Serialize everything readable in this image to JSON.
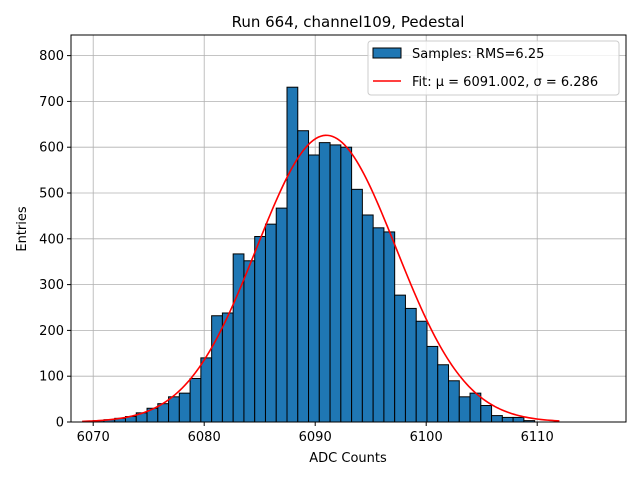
{
  "chart_data": {
    "type": "bar",
    "title": "Run 664, channel109, Pedestal",
    "xlabel": "ADC Counts",
    "ylabel": "Entries",
    "xlim": [
      6068,
      6118
    ],
    "ylim": [
      0,
      845
    ],
    "x_ticks": [
      6070,
      6080,
      6090,
      6100,
      6110
    ],
    "y_ticks": [
      0,
      100,
      200,
      300,
      400,
      500,
      600,
      700,
      800
    ],
    "grid": true,
    "legend_position": "top-right",
    "histogram": {
      "name": "Samples: RMS=6.25",
      "color": "#1f77b4",
      "edge_color": "#000000",
      "bin_start": 6070,
      "bin_width": 0.97,
      "counts": [
        3,
        5,
        8,
        12,
        20,
        30,
        40,
        55,
        63,
        95,
        140,
        232,
        238,
        367,
        352,
        405,
        432,
        467,
        731,
        636,
        583,
        610,
        605,
        600,
        508,
        452,
        424,
        415,
        277,
        248,
        220,
        165,
        125,
        90,
        55,
        63,
        36,
        14,
        10,
        10,
        3
      ]
    },
    "fit": {
      "name": "Fit: $\\mu$ = 6091.002, $\\sigma$ = 6.286",
      "legend_label": "Fit: μ = 6091.002, σ = 6.286",
      "color": "#ff0000",
      "mu": 6091.002,
      "sigma": 6.286,
      "amplitude": 626,
      "x_range": [
        6069,
        6112
      ]
    }
  }
}
